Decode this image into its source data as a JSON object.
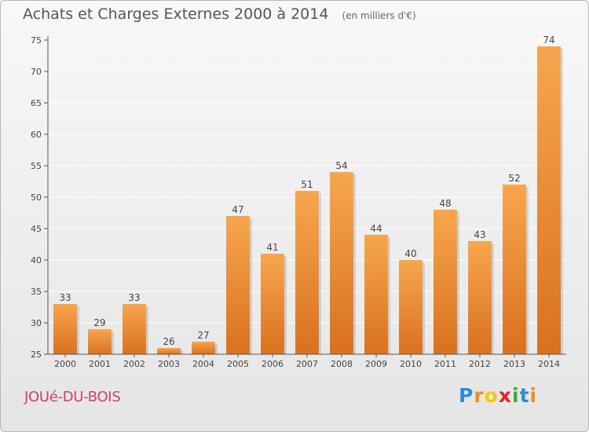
{
  "header": {
    "title": "Achats et Charges Externes 2000 à 2014",
    "subtitle": "(en milliers d'€)"
  },
  "footer": {
    "place": "JOUé-DU-BOIS",
    "brand_letters": [
      "P",
      "r",
      "o",
      "x",
      "i",
      "t",
      "i"
    ],
    "brand_colors": [
      "#2a8fd6",
      "#f28c1d",
      "#f5c800",
      "#e2232a",
      "#3aaa35",
      "#2a8fd6",
      "#f28c1d"
    ]
  },
  "colors": {
    "bar_top": "#f7a64e",
    "bar_bottom": "#d9711f",
    "grid": "#ffffff",
    "axis": "#555555"
  },
  "chart_data": {
    "type": "bar",
    "title": "Achats et Charges Externes 2000 à 2014",
    "subtitle": "(en milliers d'€)",
    "categories": [
      "2000",
      "2001",
      "2002",
      "2003",
      "2004",
      "2005",
      "2006",
      "2007",
      "2008",
      "2009",
      "2010",
      "2011",
      "2012",
      "2013",
      "2014"
    ],
    "values": [
      33,
      29,
      33,
      26,
      27,
      47,
      41,
      51,
      54,
      44,
      40,
      48,
      43,
      52,
      74
    ],
    "ylim": [
      25,
      75
    ],
    "yticks": [
      25,
      30,
      35,
      40,
      45,
      50,
      55,
      60,
      65,
      70,
      75
    ],
    "grid": true,
    "xlabel": "",
    "ylabel": ""
  }
}
